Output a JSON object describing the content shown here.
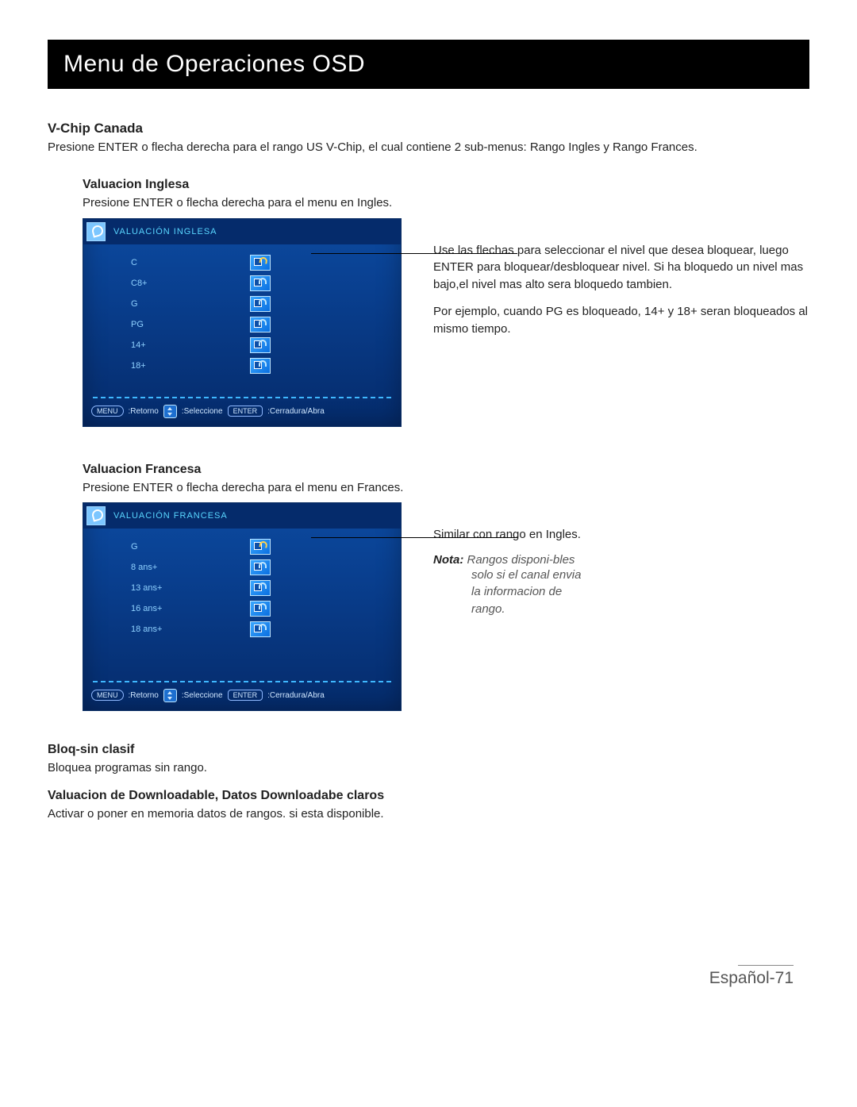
{
  "title": "Menu de Operaciones OSD",
  "vchip": {
    "heading": "V-Chip Canada",
    "text": "Presione ENTER o flecha derecha para el rango US V-Chip, el cual contiene 2 sub-menus: Rango Ingles y Rango Frances."
  },
  "english": {
    "heading": "Valuacion Inglesa",
    "text": "Presione ENTER o flecha derecha para el menu en Ingles.",
    "osd": {
      "title": "VALUACIÓN INGLESA",
      "rows": [
        {
          "label": "C",
          "state": "unlock"
        },
        {
          "label": "C8+",
          "state": "lock"
        },
        {
          "label": "G",
          "state": "lock"
        },
        {
          "label": "PG",
          "state": "lock"
        },
        {
          "label": "14+",
          "state": "lock"
        },
        {
          "label": "18+",
          "state": "lock"
        }
      ],
      "nav": {
        "menu": "MENU",
        "ret": ":Retorno",
        "sel": ":Seleccione",
        "enter": "ENTER",
        "action": ":Cerradura/Abra"
      }
    },
    "help1": "Use las flechas para seleccionar el nivel que desea bloquear, luego ENTER para bloquear/desbloquear nivel. Si ha bloquedo un nivel mas bajo,el nivel mas alto sera bloquedo tambien.",
    "help2": "Por ejemplo, cuando PG es bloqueado, 14+ y 18+ seran bloqueados al mismo tiempo."
  },
  "french": {
    "heading": "Valuacion Francesa",
    "text": "Presione ENTER o flecha derecha para el menu en Frances.",
    "osd": {
      "title": "VALUACIÓN FRANCESA",
      "rows": [
        {
          "label": "G",
          "state": "unlock"
        },
        {
          "label": "8 ans+",
          "state": "lock"
        },
        {
          "label": "13 ans+",
          "state": "lock"
        },
        {
          "label": "16 ans+",
          "state": "lock"
        },
        {
          "label": "18 ans+",
          "state": "lock"
        }
      ],
      "nav": {
        "menu": "MENU",
        "ret": ":Retorno",
        "sel": ":Seleccione",
        "enter": "ENTER",
        "action": ":Cerradura/Abra"
      }
    },
    "help1": "Similar con rango en Ingles.",
    "noteLabel": "Nota:",
    "noteText": " Rangos disponi-bles",
    "noteL1": "solo si el canal envia",
    "noteL2": "la informacion de",
    "noteL3": "rango."
  },
  "bloq": {
    "heading": "Bloq-sin clasif",
    "text": "Bloquea programas sin rango."
  },
  "download": {
    "heading": "Valuacion de Downloadable, Datos Downloadabe claros",
    "text": "Activar o poner en memoria datos de rangos. si esta disponible."
  },
  "footer": {
    "lang": "Español-",
    "page": "71"
  }
}
